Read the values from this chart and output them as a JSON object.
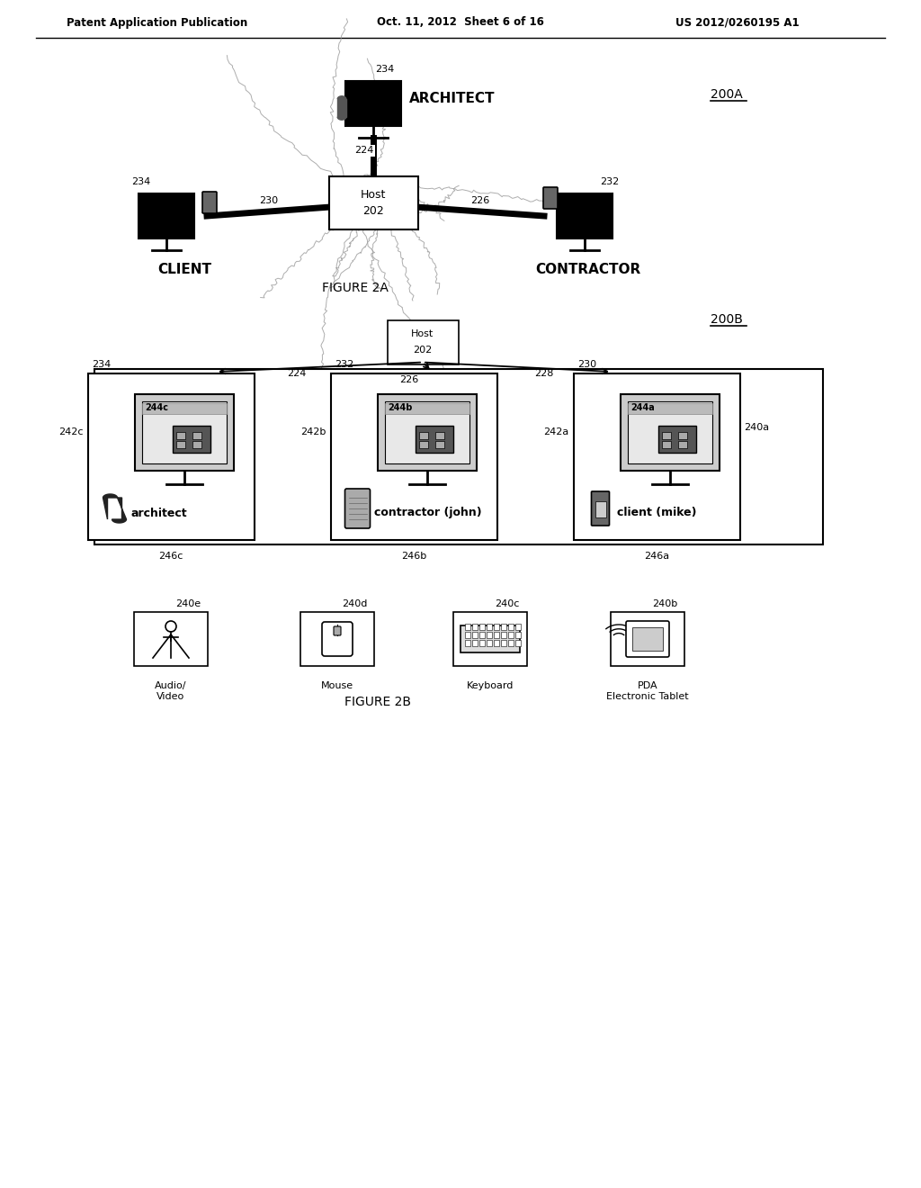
{
  "bg_color": "#ffffff",
  "header_left": "Patent Application Publication",
  "header_center": "Oct. 11, 2012  Sheet 6 of 16",
  "header_right": "US 2012/0260195 A1",
  "fig2a_label": "200A",
  "fig2a_caption": "FIGURE 2A",
  "fig2b_label": "200B",
  "fig2b_caption": "FIGURE 2B",
  "host_label": "Host",
  "host_number": "202",
  "architect_label": "ARCHITECT",
  "client_label": "CLIENT",
  "contractor_label": "CONTRACTOR",
  "num_234_top": "234",
  "num_224": "224",
  "num_230": "230",
  "num_226": "226",
  "num_232": "232",
  "num_234_left": "234",
  "fig2b_host_label": "Host",
  "fig2b_host_number": "202",
  "num_224b": "224",
  "num_226b": "226",
  "num_228b": "228",
  "num_234b": "234",
  "num_232b": "232",
  "num_230b": "230",
  "num_244c": "244c",
  "num_244b": "244b",
  "num_244a": "244a",
  "num_242c": "242c",
  "num_242b": "242b",
  "num_242a": "242a",
  "num_240a": "240a",
  "num_246c": "246c",
  "num_246b": "246b",
  "num_246a": "246a",
  "num_240e": "240e",
  "num_240d": "240d",
  "num_240c": "240c",
  "num_240b": "240b",
  "label_architect": "architect",
  "label_contractor_john": "contractor (john)",
  "label_client_mike": "client (mike)",
  "label_audio_video": "Audio/\nVideo",
  "label_mouse": "Mouse",
  "label_keyboard": "Keyboard",
  "label_pda": "PDA\nElectronic Tablet"
}
